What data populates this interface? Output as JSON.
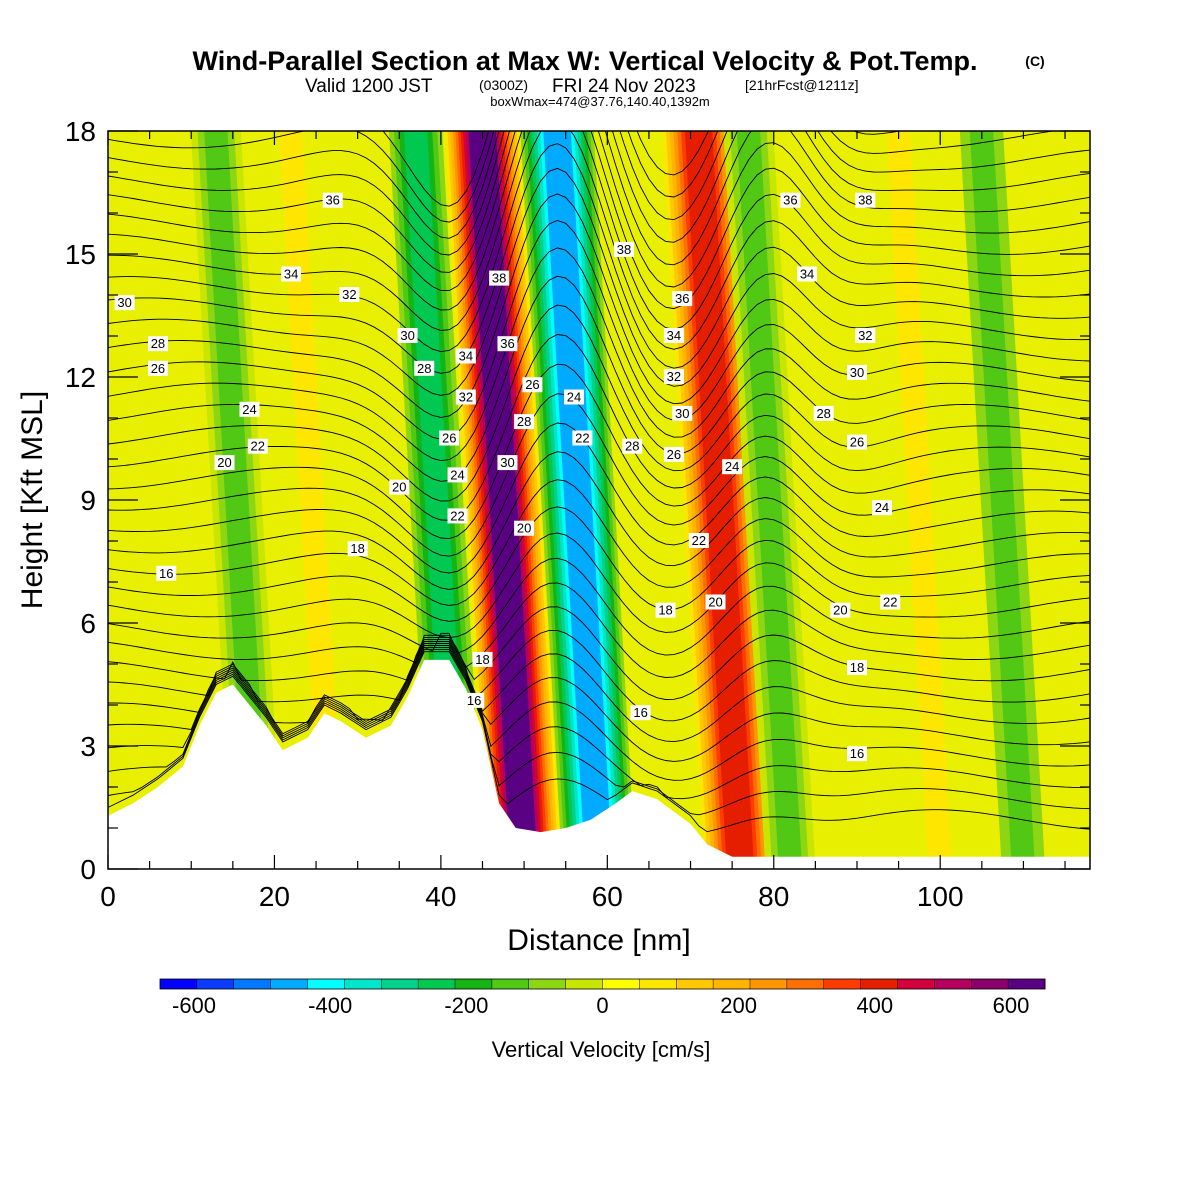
{
  "header": {
    "title": "Wind-Parallel Section at Max W: Vertical Velocity & Pot.Temp.",
    "copyright": "(C)",
    "valid_prefix": "Valid 1200 JST",
    "valid_utc": "(0300Z)",
    "valid_date": "FRI 24 Nov 2023",
    "forecast": "[21hrFcst@1211z]",
    "box_info": "boxWmax=474@37.76,140.40,1392m"
  },
  "chart_data": {
    "type": "heatmap",
    "xlabel": "Distance [nm]",
    "ylabel": "Height [Kft MSL]",
    "xlim": [
      0,
      118
    ],
    "ylim": [
      0,
      18
    ],
    "x_ticks": [
      0,
      20,
      40,
      60,
      80,
      100
    ],
    "y_ticks": [
      0,
      3,
      6,
      9,
      12,
      15,
      18
    ],
    "colorbar": {
      "label": "Vertical Velocity [cm/s]",
      "ticks": [
        -600,
        -400,
        -200,
        0,
        200,
        400,
        600
      ],
      "range": [
        -650,
        650
      ],
      "colors": [
        "#0000ff",
        "#0a3cff",
        "#0078ff",
        "#00aaff",
        "#00ffff",
        "#00e6c8",
        "#00d28c",
        "#00c850",
        "#14b414",
        "#50c814",
        "#8cd614",
        "#c8e600",
        "#ffff00",
        "#ffe600",
        "#ffc800",
        "#ffb400",
        "#ff9600",
        "#ff6e00",
        "#ff3c00",
        "#e61e00",
        "#d2003c",
        "#b4005a",
        "#8c006e",
        "#5a0082"
      ]
    },
    "velocity_bands_cm_s": [
      {
        "x": 18,
        "w": -150
      },
      {
        "x": 27,
        "w": 80
      },
      {
        "x": 42,
        "w": -250
      },
      {
        "x": 50,
        "w": 600
      },
      {
        "x": 59,
        "w": -450
      },
      {
        "x": 76,
        "w": 400
      },
      {
        "x": 82,
        "w": -150
      },
      {
        "x": 100,
        "w": 80
      },
      {
        "x": 110,
        "w": -120
      }
    ],
    "terrain_kft": [
      {
        "x": 0,
        "z": 1.3
      },
      {
        "x": 3,
        "z": 1.6
      },
      {
        "x": 6,
        "z": 2.0
      },
      {
        "x": 9,
        "z": 2.5
      },
      {
        "x": 11,
        "z": 3.5
      },
      {
        "x": 13,
        "z": 4.3
      },
      {
        "x": 15,
        "z": 4.5
      },
      {
        "x": 17,
        "z": 4.0
      },
      {
        "x": 19,
        "z": 3.5
      },
      {
        "x": 21,
        "z": 2.9
      },
      {
        "x": 24,
        "z": 3.2
      },
      {
        "x": 26,
        "z": 3.8
      },
      {
        "x": 28,
        "z": 3.6
      },
      {
        "x": 31,
        "z": 3.2
      },
      {
        "x": 34,
        "z": 3.5
      },
      {
        "x": 36,
        "z": 4.2
      },
      {
        "x": 38,
        "z": 5.1
      },
      {
        "x": 41,
        "z": 5.1
      },
      {
        "x": 43,
        "z": 4.4
      },
      {
        "x": 45,
        "z": 3.4
      },
      {
        "x": 47,
        "z": 1.6
      },
      {
        "x": 49,
        "z": 1.0
      },
      {
        "x": 52,
        "z": 0.9
      },
      {
        "x": 55,
        "z": 1.0
      },
      {
        "x": 58,
        "z": 1.2
      },
      {
        "x": 61,
        "z": 1.6
      },
      {
        "x": 63,
        "z": 1.9
      },
      {
        "x": 66,
        "z": 1.7
      },
      {
        "x": 68,
        "z": 1.4
      },
      {
        "x": 70,
        "z": 1.1
      },
      {
        "x": 72,
        "z": 0.6
      },
      {
        "x": 75,
        "z": 0.3
      },
      {
        "x": 118,
        "z": 0.3
      }
    ],
    "theta_labels": [
      {
        "x": 27,
        "y": 16.3,
        "v": "36"
      },
      {
        "x": 22,
        "y": 14.5,
        "v": "34"
      },
      {
        "x": 2,
        "y": 13.8,
        "v": "30"
      },
      {
        "x": 29,
        "y": 14.0,
        "v": "32"
      },
      {
        "x": 6,
        "y": 12.8,
        "v": "28"
      },
      {
        "x": 6,
        "y": 12.2,
        "v": "26"
      },
      {
        "x": 17,
        "y": 11.2,
        "v": "24"
      },
      {
        "x": 18,
        "y": 10.3,
        "v": "22"
      },
      {
        "x": 14,
        "y": 9.9,
        "v": "20"
      },
      {
        "x": 7,
        "y": 7.2,
        "v": "16"
      },
      {
        "x": 30,
        "y": 7.8,
        "v": "18"
      },
      {
        "x": 35,
        "y": 9.3,
        "v": "20"
      },
      {
        "x": 36,
        "y": 13.0,
        "v": "30"
      },
      {
        "x": 38,
        "y": 12.2,
        "v": "28"
      },
      {
        "x": 43,
        "y": 12.5,
        "v": "34"
      },
      {
        "x": 43,
        "y": 11.5,
        "v": "32"
      },
      {
        "x": 41,
        "y": 10.5,
        "v": "26"
      },
      {
        "x": 42,
        "y": 9.6,
        "v": "24"
      },
      {
        "x": 42,
        "y": 8.6,
        "v": "22"
      },
      {
        "x": 47,
        "y": 14.4,
        "v": "38"
      },
      {
        "x": 48,
        "y": 12.8,
        "v": "36"
      },
      {
        "x": 51,
        "y": 11.8,
        "v": "26"
      },
      {
        "x": 50,
        "y": 10.9,
        "v": "28"
      },
      {
        "x": 48,
        "y": 9.9,
        "v": "30"
      },
      {
        "x": 50,
        "y": 8.3,
        "v": "20"
      },
      {
        "x": 45,
        "y": 5.1,
        "v": "18"
      },
      {
        "x": 44,
        "y": 4.1,
        "v": "16"
      },
      {
        "x": 56,
        "y": 11.5,
        "v": "24"
      },
      {
        "x": 57,
        "y": 10.5,
        "v": "22"
      },
      {
        "x": 62,
        "y": 15.1,
        "v": "38"
      },
      {
        "x": 69,
        "y": 13.9,
        "v": "36"
      },
      {
        "x": 68,
        "y": 13.0,
        "v": "34"
      },
      {
        "x": 68,
        "y": 12.0,
        "v": "32"
      },
      {
        "x": 69,
        "y": 11.1,
        "v": "30"
      },
      {
        "x": 63,
        "y": 10.3,
        "v": "28"
      },
      {
        "x": 68,
        "y": 10.1,
        "v": "26"
      },
      {
        "x": 71,
        "y": 8.0,
        "v": "22"
      },
      {
        "x": 73,
        "y": 6.5,
        "v": "20"
      },
      {
        "x": 67,
        "y": 6.3,
        "v": "18"
      },
      {
        "x": 64,
        "y": 3.8,
        "v": "16"
      },
      {
        "x": 75,
        "y": 9.8,
        "v": "24"
      },
      {
        "x": 82,
        "y": 16.3,
        "v": "36"
      },
      {
        "x": 91,
        "y": 16.3,
        "v": "38"
      },
      {
        "x": 84,
        "y": 14.5,
        "v": "34"
      },
      {
        "x": 91,
        "y": 13.0,
        "v": "32"
      },
      {
        "x": 90,
        "y": 12.1,
        "v": "30"
      },
      {
        "x": 86,
        "y": 11.1,
        "v": "28"
      },
      {
        "x": 90,
        "y": 10.4,
        "v": "26"
      },
      {
        "x": 93,
        "y": 8.8,
        "v": "24"
      },
      {
        "x": 94,
        "y": 6.5,
        "v": "22"
      },
      {
        "x": 88,
        "y": 6.3,
        "v": "20"
      },
      {
        "x": 90,
        "y": 4.9,
        "v": "18"
      },
      {
        "x": 90,
        "y": 2.8,
        "v": "16"
      }
    ]
  }
}
